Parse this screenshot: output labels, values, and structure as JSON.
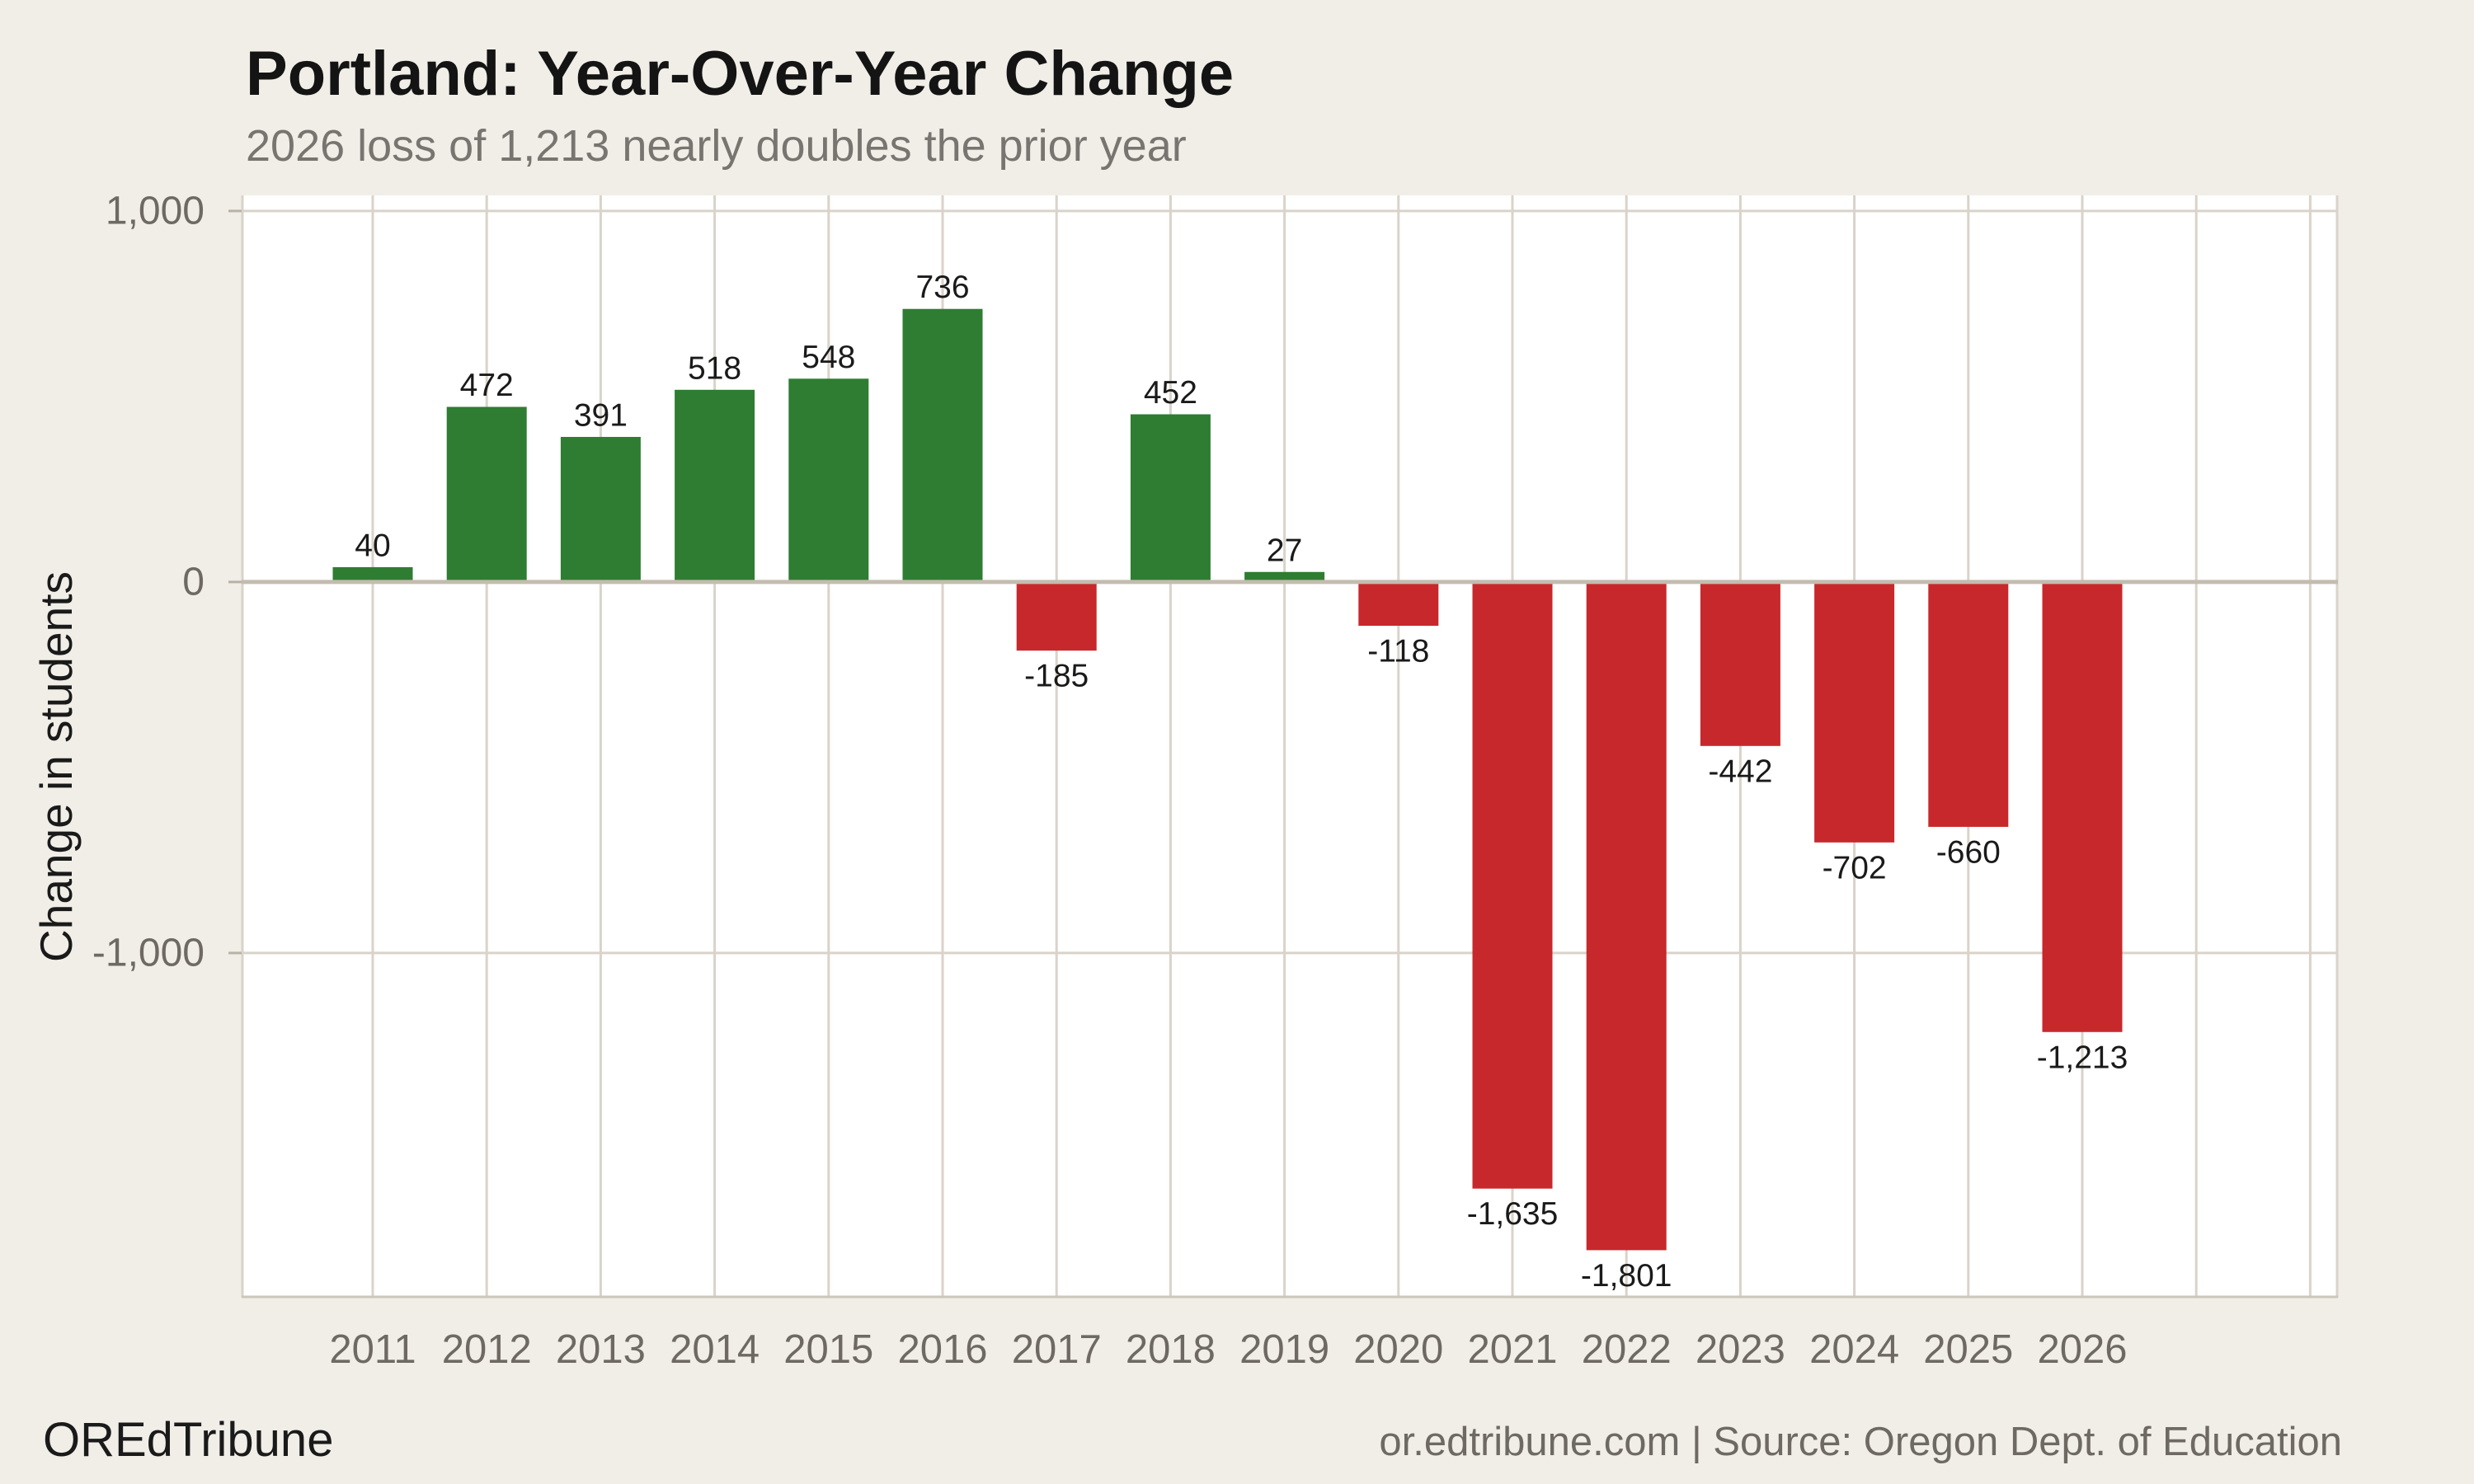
{
  "header": {
    "title": "Portland: Year-Over-Year Change",
    "subtitle": "2026 loss of 1,213 nearly doubles the prior year"
  },
  "footer": {
    "brand": "OREdTribune",
    "source": "or.edtribune.com | Source: Oregon Dept. of Education"
  },
  "chart_data": {
    "type": "bar",
    "title": "Portland: Year-Over-Year Change",
    "subtitle": "2026 loss of 1,213 nearly doubles the prior year",
    "xlabel": "",
    "ylabel": "Change in students",
    "categories": [
      "2011",
      "2012",
      "2013",
      "2014",
      "2015",
      "2016",
      "2017",
      "2018",
      "2019",
      "2020",
      "2021",
      "2022",
      "2023",
      "2024",
      "2025",
      "2026"
    ],
    "values": [
      40,
      472,
      391,
      518,
      548,
      736,
      -185,
      452,
      27,
      -118,
      -1635,
      -1801,
      -442,
      -702,
      -660,
      -1213
    ],
    "value_labels": [
      "40",
      "472",
      "391",
      "518",
      "548",
      "736",
      "-185",
      "452",
      "27",
      "-118",
      "-1,635",
      "-1,801",
      "-442",
      "-702",
      "-660",
      "-1,213"
    ],
    "yticks": [
      {
        "value": 1000,
        "label": "1,000"
      },
      {
        "value": 0,
        "label": "0"
      },
      {
        "value": -1000,
        "label": "-1,000"
      }
    ],
    "ylim": [
      -1929,
      1042
    ],
    "grid": true,
    "legend": "none",
    "colors": {
      "positive_bar": "#2e7d32",
      "negative_bar": "#c7282c",
      "page_background": "#f1eee8",
      "plot_background": "#ffffff",
      "gridline": "#d9d3c9",
      "zero_line": "#c3bcaf",
      "axis_line": "#ccc6bb",
      "tick_mark": "#b8b2a6",
      "tick_text": "#6e6a63",
      "value_text": "#1a1a1a",
      "axis_title_text": "#1a1a1a"
    }
  }
}
